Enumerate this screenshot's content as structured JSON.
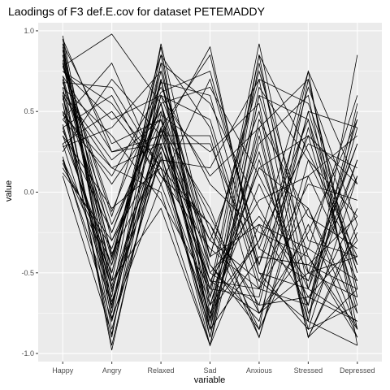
{
  "chart_data": {
    "type": "line",
    "title": "Laodings of F3 def.E.cov for dataset PETEMADDY",
    "xlabel": "variable",
    "ylabel": "value",
    "categories": [
      "Happy",
      "Angry",
      "Relaxed",
      "Sad",
      "Anxious",
      "Stressed",
      "Depressed"
    ],
    "y_ticks": [
      "-1.0",
      "-0.5",
      "0.0",
      "0.5",
      "1.0"
    ],
    "y_tick_values": [
      -1.0,
      -0.5,
      0.0,
      0.5,
      1.0
    ],
    "ylim": [
      -1.05,
      1.05
    ],
    "grid": true,
    "panel_background": "#ebebeb",
    "grid_color": "#ffffff",
    "line_color": "#000000",
    "series": [
      {
        "values": [
          0.97,
          -0.55,
          0.9,
          -0.85,
          0.8,
          -0.6,
          0.45
        ]
      },
      {
        "values": [
          0.85,
          -0.4,
          0.7,
          -0.75,
          -0.3,
          0.75,
          -0.95
        ]
      },
      {
        "values": [
          0.78,
          0.98,
          0.55,
          -0.6,
          0.92,
          -0.5,
          0.3
        ]
      },
      {
        "values": [
          0.62,
          -0.98,
          0.4,
          0.85,
          -0.45,
          0.35,
          -0.7
        ]
      },
      {
        "values": [
          0.3,
          -0.65,
          0.92,
          -0.4,
          0.7,
          -0.8,
          0.85
        ]
      },
      {
        "values": [
          0.72,
          0.25,
          0.35,
          -0.5,
          -0.7,
          0.5,
          -0.45
        ]
      },
      {
        "values": [
          0.55,
          -0.7,
          0.6,
          0.1,
          0.4,
          -0.9,
          -0.2
        ]
      },
      {
        "values": [
          0.88,
          -0.3,
          0.25,
          -0.95,
          -0.2,
          -0.35,
          0.6
        ]
      },
      {
        "values": [
          0.45,
          0.8,
          0.1,
          -0.2,
          -0.85,
          0.7,
          -0.6
        ]
      },
      {
        "values": [
          0.95,
          -0.8,
          0.7,
          -0.65,
          0.15,
          -0.1,
          -0.85
        ]
      },
      {
        "values": [
          0.2,
          -0.45,
          0.85,
          0.4,
          -0.6,
          -0.7,
          0.2
        ]
      },
      {
        "values": [
          0.68,
          -0.2,
          0.45,
          -0.78,
          0.85,
          0.25,
          -0.4
        ]
      },
      {
        "values": [
          0.4,
          0.6,
          0.05,
          0.7,
          -0.35,
          -0.55,
          0.1
        ]
      },
      {
        "values": [
          0.82,
          -0.58,
          0.38,
          -0.3,
          -0.55,
          -0.8,
          -0.95
        ]
      },
      {
        "values": [
          0.15,
          -0.35,
          0.55,
          -0.9,
          0.6,
          0.45,
          -0.75
        ]
      },
      {
        "values": [
          0.6,
          0.15,
          0.3,
          -0.55,
          -0.75,
          -0.25,
          0.45
        ]
      },
      {
        "values": [
          0.92,
          -0.75,
          0.8,
          0.55,
          -0.1,
          -0.65,
          -0.3
        ]
      },
      {
        "values": [
          0.35,
          -0.1,
          0.15,
          -0.7,
          0.3,
          0.6,
          -0.85
        ]
      },
      {
        "values": [
          0.75,
          0.45,
          0.6,
          -0.25,
          -0.9,
          0.1,
          0.35
        ]
      },
      {
        "values": [
          0.5,
          -0.6,
          0.2,
          -0.85,
          -0.4,
          -0.45,
          -0.15
        ]
      },
      {
        "values": [
          0.1,
          -0.88,
          0.48,
          0.25,
          0.55,
          -0.9,
          -0.6
        ]
      },
      {
        "values": [
          0.65,
          0.35,
          -0.05,
          -0.6,
          -0.65,
          0.75,
          0.05
        ]
      },
      {
        "values": [
          0.8,
          -0.5,
          0.75,
          -0.4,
          0.75,
          -0.3,
          -0.4
        ]
      },
      {
        "values": [
          0.25,
          0.7,
          0.35,
          0.9,
          -0.5,
          -0.6,
          -0.8
        ]
      },
      {
        "values": [
          0.58,
          -0.25,
          0.5,
          -0.8,
          0.2,
          -0.7,
          0.55
        ]
      },
      {
        "values": [
          0.9,
          -0.62,
          0.4,
          -0.45,
          -0.8,
          0.4,
          -0.5
        ]
      },
      {
        "values": [
          0.45,
          0.1,
          0.65,
          0.05,
          -0.25,
          -0.4,
          -0.9
        ]
      },
      {
        "values": [
          0.7,
          -0.85,
          0.25,
          -0.9,
          0.45,
          -0.15,
          -0.35
        ]
      },
      {
        "values": [
          0.3,
          0.5,
          0.1,
          -0.35,
          -0.6,
          0.5,
          0.4
        ]
      },
      {
        "values": [
          0.85,
          -0.4,
          0.55,
          0.65,
          0.1,
          -0.5,
          -0.65
        ]
      },
      {
        "values": [
          0.2,
          -0.7,
          0.3,
          -0.65,
          0.85,
          -0.75,
          -0.1
        ]
      },
      {
        "values": [
          0.62,
          0.2,
          0.45,
          -0.15,
          -0.75,
          -0.35,
          -0.55
        ]
      },
      {
        "values": [
          0.78,
          -0.15,
          0.85,
          -0.7,
          -0.3,
          0.3,
          0.15
        ]
      },
      {
        "values": [
          0.4,
          -0.55,
          -0.1,
          -0.95,
          0.35,
          -0.85,
          -0.7
        ]
      },
      {
        "values": [
          0.95,
          0.25,
          0.3,
          0.3,
          -0.45,
          0.65,
          -0.2
        ]
      },
      {
        "values": [
          0.55,
          -0.9,
          0.7,
          -0.5,
          -0.15,
          -0.55,
          0.3
        ]
      },
      {
        "values": [
          0.12,
          -0.3,
          0.4,
          -0.8,
          0.65,
          0.2,
          -0.45
        ]
      },
      {
        "values": [
          0.68,
          0.65,
          0.15,
          -0.2,
          -0.7,
          -0.65,
          -0.8
        ]
      },
      {
        "values": [
          0.35,
          -0.45,
          0.6,
          0.45,
          -0.55,
          0.05,
          -0.05
        ]
      },
      {
        "values": [
          0.88,
          -0.68,
          0.35,
          -0.6,
          0.25,
          -0.8,
          0.5
        ]
      },
      {
        "values": [
          0.5,
          0.05,
          0.5,
          -0.85,
          -0.4,
          -0.45,
          -0.6
        ]
      },
      {
        "values": [
          0.72,
          -0.38,
          0.2,
          0.15,
          0.7,
          0.55,
          -0.3
        ]
      },
      {
        "values": [
          0.28,
          0.4,
          0.75,
          -0.45,
          -0.85,
          -0.2,
          -0.9
        ]
      },
      {
        "values": [
          0.65,
          -0.78,
          0.05,
          -0.75,
          0.05,
          -0.6,
          0.2
        ]
      },
      {
        "values": [
          0.8,
          -0.12,
          0.62,
          0.75,
          -0.35,
          0.45,
          -0.5
        ]
      },
      {
        "values": [
          0.42,
          -0.6,
          0.28,
          -0.3,
          0.5,
          -0.9,
          -0.25
        ]
      },
      {
        "values": [
          0.92,
          0.3,
          0.45,
          -0.55,
          -0.6,
          -0.1,
          -0.75
        ]
      },
      {
        "values": [
          0.18,
          -0.5,
          0.8,
          -0.7,
          0.15,
          0.35,
          0.05
        ]
      },
      {
        "values": [
          0.6,
          -0.95,
          0.35,
          0.35,
          -0.75,
          -0.5,
          -0.4
        ]
      },
      {
        "values": [
          0.75,
          0.55,
          0.15,
          -0.85,
          0.4,
          0.7,
          -0.65
        ]
      },
      {
        "values": [
          0.38,
          -0.25,
          0.55,
          -0.4,
          -0.2,
          -0.7,
          0.4
        ]
      },
      {
        "values": [
          0.85,
          -0.72,
          0.4,
          -0.1,
          -0.9,
          0.2,
          -0.15
        ]
      },
      {
        "values": [
          0.48,
          0.15,
          0.0,
          -0.95,
          0.6,
          -0.4,
          -0.85
        ]
      },
      {
        "values": [
          0.7,
          -0.42,
          0.68,
          0.6,
          -0.5,
          -0.85,
          0.1
        ]
      },
      {
        "values": [
          0.22,
          -0.8,
          0.22,
          -0.55,
          -0.05,
          0.1,
          -0.55
        ]
      }
    ]
  }
}
